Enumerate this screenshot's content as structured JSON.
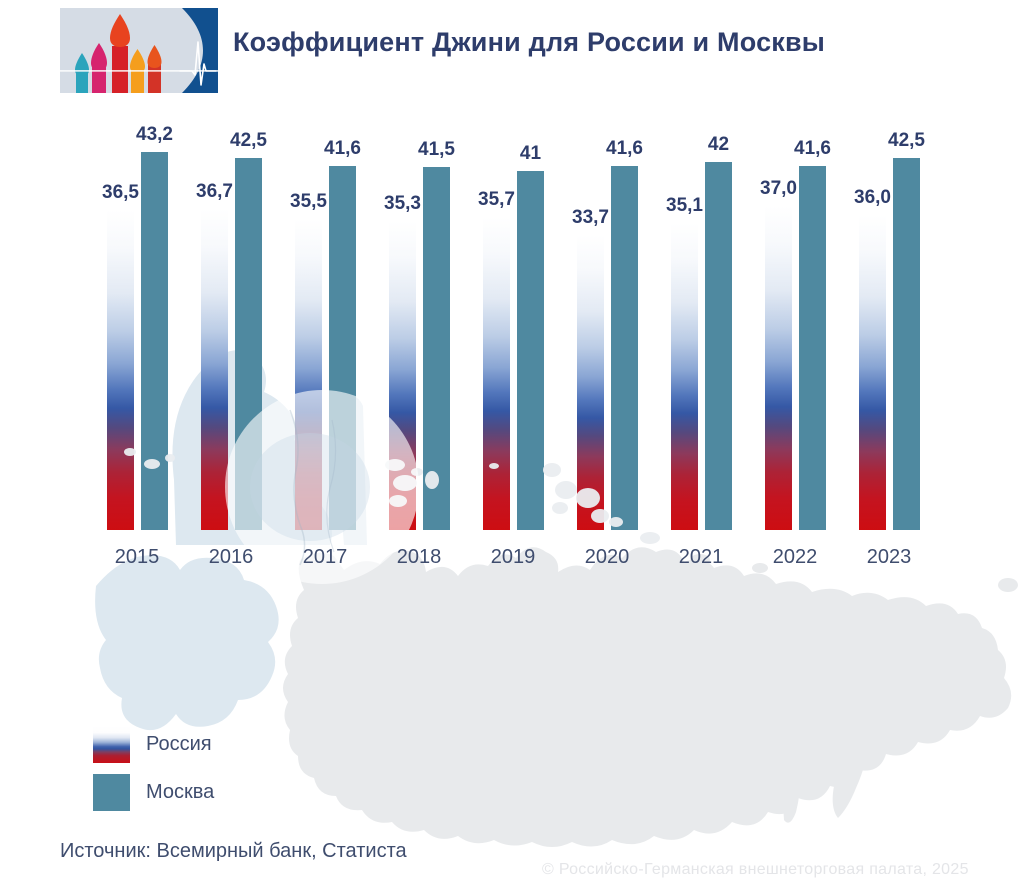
{
  "header": {
    "title": "Коэффициент Джини для России и Москвы"
  },
  "chart_data": {
    "type": "bar",
    "title": "Коэффициент Джини для России и Москвы",
    "categories": [
      "2015",
      "2016",
      "2017",
      "2018",
      "2019",
      "2020",
      "2021",
      "2022",
      "2023"
    ],
    "series": [
      {
        "name": "Россия",
        "values": [
          36.5,
          36.7,
          35.5,
          35.3,
          35.7,
          33.7,
          35.1,
          37.0,
          36.0
        ],
        "display_labels": [
          "36,5",
          "36,7",
          "35,5",
          "35,3",
          "35,7",
          "33,7",
          "35,1",
          "37,0",
          "36,0"
        ],
        "color": "flag-gradient-white-blue-red"
      },
      {
        "name": "Москва",
        "values": [
          43.2,
          42.5,
          41.6,
          41.5,
          41.0,
          41.6,
          42.0,
          41.6,
          42.5
        ],
        "display_labels": [
          "43,2",
          "42,5",
          "41,6",
          "41,5",
          "41",
          "41,6",
          "42",
          "41,6",
          "42,5"
        ],
        "color": "#4f89a0"
      }
    ],
    "ylim": [
      0,
      43.2
    ],
    "grid": false,
    "axes_shown": false,
    "legend_position": "bottom-left",
    "background": "light map of Russia silhouette with Moscow zoom circle"
  },
  "legend": {
    "items": [
      {
        "label": "Россия",
        "swatch": "flag-gradient"
      },
      {
        "label": "Москва",
        "swatch": "#4f89a0"
      }
    ]
  },
  "source": {
    "text": "Источник: Всемирный банк, Статиста"
  },
  "watermark": {
    "text": "© Российско-Германская внешнеторговая палата, 2025"
  },
  "colors": {
    "title_text": "#2e3d6b",
    "value_label_text": "#2e3d6b",
    "axis_text": "#3f4d6e",
    "moscow_bar": "#4f89a0",
    "russia_bar_bottom_red": "#cd0d12",
    "russia_bar_mid_blue": "#3558a5",
    "map_blue": "#dde8f0",
    "map_gray": "#e8eaec",
    "logo_panel": "#d5dce5",
    "logo_blue": "#11508f"
  }
}
